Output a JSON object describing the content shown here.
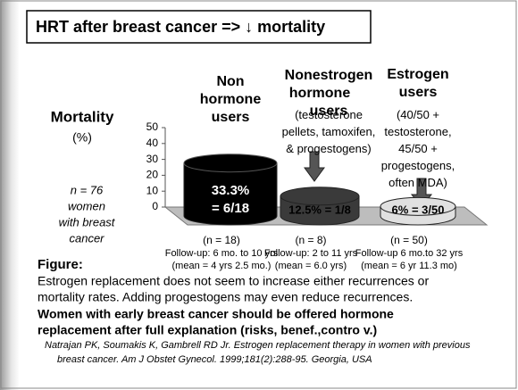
{
  "slide": {
    "title": "HRT after breast cancer  => ↓ mortality",
    "figure_label": "Figure:",
    "body": [
      "Estrogen replacement does not seem to increase either recurrences or",
      "mortality rates. Adding progestogens may even reduce recurrences."
    ],
    "conclusion": [
      "Women with early breast cancer should be offered hormone",
      "replacement after full explanation (risks, benef.,contro v.)"
    ],
    "citation": [
      "Natrajan PK, Soumakis K, Gambrell RD Jr. Estrogen replacement therapy in women with previous",
      "breast cancer. Am J Obstet Gynecol.  1999;181(2):288-95. Georgia, USA"
    ]
  },
  "chart_data": {
    "type": "bar",
    "categories": [
      "Non hormone users",
      "Nonestrogen hormone users",
      "Estrogen users"
    ],
    "category_notes": [
      null,
      "(testosterone pellets, tamoxifen, & progestogens)",
      "(40/50 + testosterone, 45/50 + progestogens, often MDA)"
    ],
    "values": [
      33.3,
      12.5,
      6
    ],
    "value_labels": [
      [
        "33.3%",
        "= 6/18"
      ],
      [
        "12.5% = 1/8"
      ],
      [
        "6% = 3/50"
      ]
    ],
    "colors": [
      "#000000",
      "#3a3a3a",
      "#e0e0e0"
    ],
    "sample_sizes": [
      "(n = 18)",
      "(n = 8)",
      "(n = 50)"
    ],
    "follow_up": [
      [
        "Follow-up: 6 mo. to 10 yrs",
        "(mean = 4 yrs 2.5 mo.)"
      ],
      [
        "Follow-up: 2 to 11 yrs",
        "(mean = 6.0 yrs)"
      ],
      [
        "Follow-up 6 mo.to 32 yrs",
        "(mean = 6 yr 11.3 mo)"
      ]
    ],
    "ylabel": "Mortality",
    "yunit": "(%)",
    "annotation": [
      "n = 76",
      "women",
      "with breast",
      "cancer"
    ],
    "ylim": [
      0,
      50
    ],
    "yticks": [
      0,
      10,
      20,
      30,
      40,
      50
    ]
  }
}
